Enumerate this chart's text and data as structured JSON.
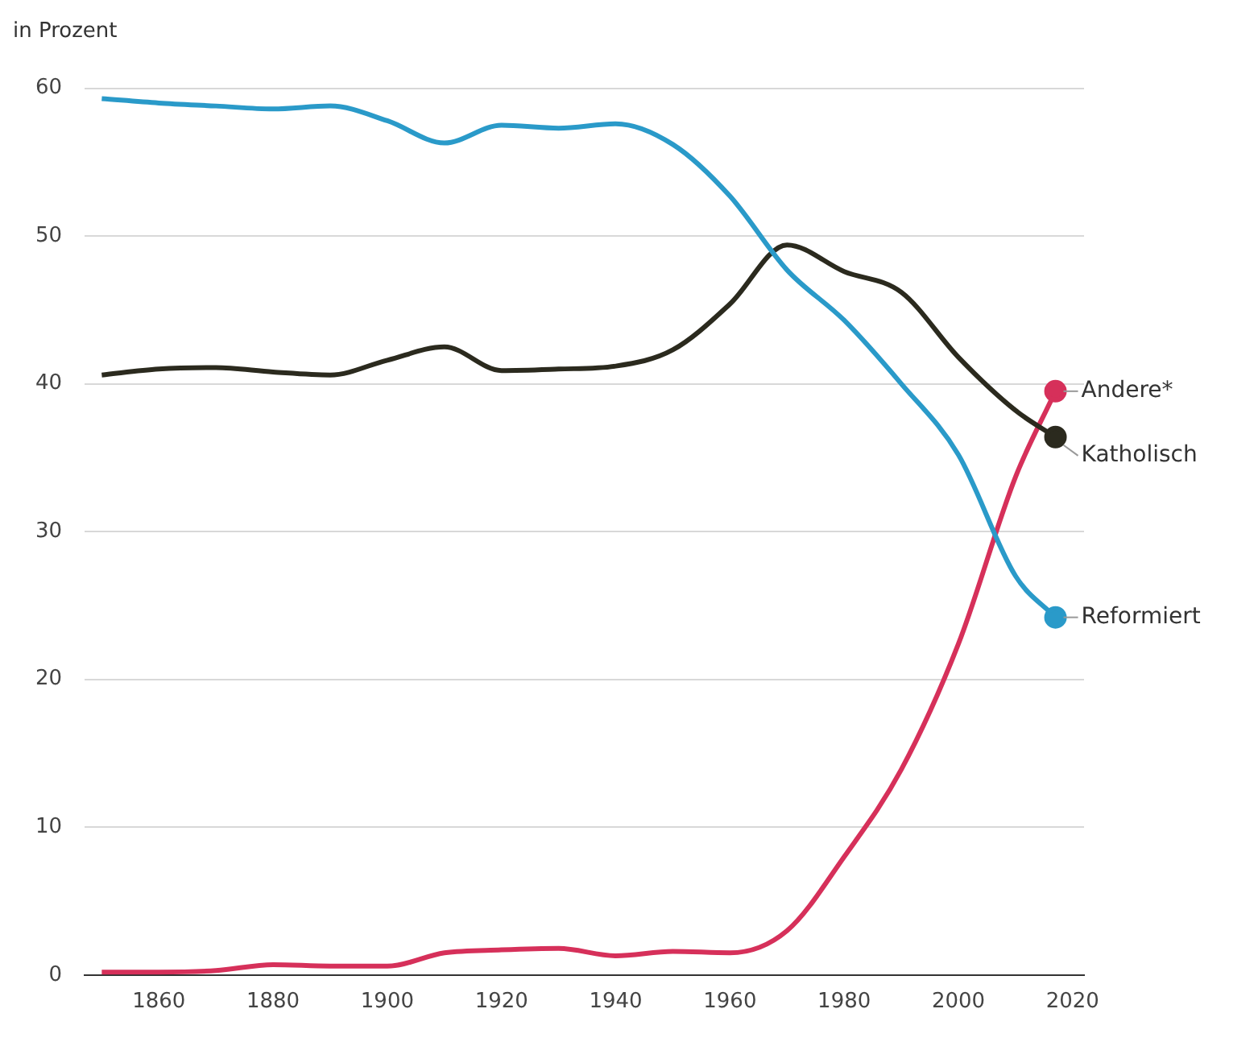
{
  "chart_data": {
    "type": "line",
    "ylabel": "in Prozent",
    "x": [
      1850,
      1860,
      1870,
      1880,
      1890,
      1900,
      1910,
      1920,
      1930,
      1940,
      1950,
      1960,
      1970,
      1980,
      1990,
      2000,
      2010,
      2017
    ],
    "series": [
      {
        "name": "Reformiert",
        "color": "#2a9ac9",
        "values": [
          59.3,
          59.0,
          58.8,
          58.6,
          58.8,
          57.8,
          56.3,
          57.5,
          57.3,
          57.6,
          56.2,
          52.7,
          47.7,
          44.3,
          40.0,
          35.2,
          27.0,
          24.2
        ]
      },
      {
        "name": "Katholisch",
        "color": "#2b2a1e",
        "values": [
          40.6,
          41.0,
          41.1,
          40.8,
          40.6,
          41.6,
          42.5,
          40.9,
          41.0,
          41.2,
          42.3,
          45.4,
          49.4,
          47.6,
          46.2,
          41.8,
          38.2,
          36.4
        ]
      },
      {
        "name": "Andere*",
        "color": "#d6305a",
        "values": [
          0.2,
          0.2,
          0.3,
          0.7,
          0.6,
          0.6,
          1.5,
          1.7,
          1.8,
          1.3,
          1.6,
          1.5,
          3.0,
          8.0,
          13.9,
          22.4,
          33.7,
          39.5
        ]
      }
    ],
    "xlim": [
      1847,
      2022
    ],
    "xticks": [
      1860,
      1880,
      1900,
      1920,
      1940,
      1960,
      1980,
      2000,
      2020
    ],
    "ylim": [
      0,
      60
    ],
    "yticks": [
      0,
      10,
      20,
      30,
      40,
      50,
      60
    ],
    "grid": "y",
    "legend": false,
    "line_style": "solid"
  }
}
